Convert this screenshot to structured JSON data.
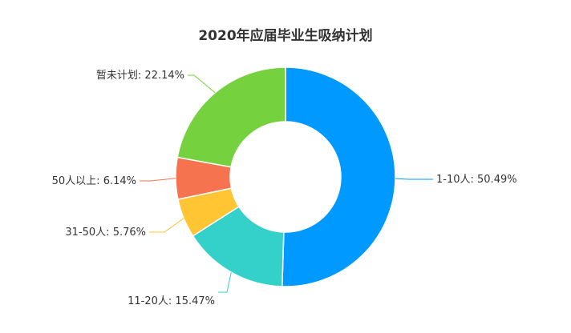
{
  "chart_data": {
    "type": "pie",
    "variant": "donut",
    "title": "2020年应届毕业生吸纳计划",
    "legend": "none",
    "slices": [
      {
        "name": "1-10人",
        "value": 50.49,
        "label": "1-10人: 50.49%",
        "color": "#0099ff"
      },
      {
        "name": "11-20人",
        "value": 15.47,
        "label": "11-20人: 15.47%",
        "color": "#33d1c9"
      },
      {
        "name": "31-50人",
        "value": 5.76,
        "label": "31-50人: 5.76%",
        "color": "#ffc533"
      },
      {
        "name": "50人以上",
        "value": 6.14,
        "label": "50人以上: 6.14%",
        "color": "#f5734f"
      },
      {
        "name": "暂未计划",
        "value": 22.14,
        "label": "暂未计划: 22.14%",
        "color": "#75d13e"
      }
    ]
  }
}
